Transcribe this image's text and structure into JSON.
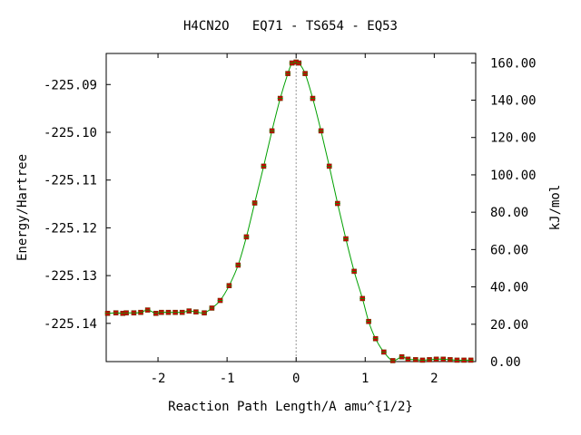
{
  "chart_data": {
    "type": "line",
    "title": "H4CN2O   EQ71 - TS654 - EQ53",
    "xlabel": "Reaction Path Length/A amu^{1/2}",
    "ylabel": "Energy/Hartree",
    "y2label": "kJ/mol",
    "xlim": [
      -2.75,
      2.6
    ],
    "ylim": [
      -225.148,
      -225.0835
    ],
    "y2lim": [
      0,
      165
    ],
    "x_ticks": [
      -2,
      -1,
      0,
      1,
      2
    ],
    "x_tick_labels": [
      "-2",
      "-1",
      "0",
      "1",
      "2"
    ],
    "y_ticks": [
      -225.14,
      -225.13,
      -225.12,
      -225.11,
      -225.1,
      -225.09
    ],
    "y_tick_labels": [
      "-225.14",
      "-225.13",
      "-225.12",
      "-225.11",
      "-225.10",
      "-225.09"
    ],
    "y2_ticks": [
      0,
      20,
      40,
      60,
      80,
      100,
      120,
      140,
      160
    ],
    "y2_tick_labels": [
      "0.00",
      "20.00",
      "40.00",
      "60.00",
      "80.00",
      "100.00",
      "120.00",
      "140.00",
      "160.00"
    ],
    "ts_marker_x": 0,
    "line_color": "#00a000",
    "point_color": "#cc0000",
    "points": [
      [
        -2.73,
        -225.1379
      ],
      [
        -2.61,
        -225.1378
      ],
      [
        -2.51,
        -225.1379
      ],
      [
        -2.46,
        -225.1378
      ],
      [
        -2.35,
        -225.1378
      ],
      [
        -2.25,
        -225.1377
      ],
      [
        -2.15,
        -225.1372
      ],
      [
        -2.03,
        -225.1379
      ],
      [
        -1.95,
        -225.1377
      ],
      [
        -1.85,
        -225.1377
      ],
      [
        -1.75,
        -225.1377
      ],
      [
        -1.65,
        -225.1377
      ],
      [
        -1.55,
        -225.1374
      ],
      [
        -1.45,
        -225.1376
      ],
      [
        -1.33,
        -225.1378
      ],
      [
        -1.22,
        -225.1368
      ],
      [
        -1.1,
        -225.1352
      ],
      [
        -0.97,
        -225.1321
      ],
      [
        -0.84,
        -225.1278
      ],
      [
        -0.72,
        -225.1219
      ],
      [
        -0.6,
        -225.1148
      ],
      [
        -0.47,
        -225.1071
      ],
      [
        -0.35,
        -225.0997
      ],
      [
        -0.23,
        -225.0929
      ],
      [
        -0.12,
        -225.0877
      ],
      [
        -0.06,
        -225.0855
      ],
      [
        0.0,
        -225.0853
      ],
      [
        0.04,
        -225.0855
      ],
      [
        0.13,
        -225.0877
      ],
      [
        0.24,
        -225.0929
      ],
      [
        0.36,
        -225.0997
      ],
      [
        0.48,
        -225.1071
      ],
      [
        0.6,
        -225.1149
      ],
      [
        0.72,
        -225.1223
      ],
      [
        0.84,
        -225.1291
      ],
      [
        0.96,
        -225.1348
      ],
      [
        1.05,
        -225.1396
      ],
      [
        1.15,
        -225.1432
      ],
      [
        1.27,
        -225.146
      ],
      [
        1.4,
        -225.1478
      ],
      [
        1.53,
        -225.147
      ],
      [
        1.62,
        -225.1475
      ],
      [
        1.73,
        -225.1476
      ],
      [
        1.83,
        -225.1477
      ],
      [
        1.93,
        -225.1476
      ],
      [
        2.03,
        -225.1475
      ],
      [
        2.13,
        -225.1475
      ],
      [
        2.23,
        -225.1476
      ],
      [
        2.33,
        -225.1477
      ],
      [
        2.43,
        -225.1477
      ],
      [
        2.53,
        -225.1477
      ]
    ]
  }
}
